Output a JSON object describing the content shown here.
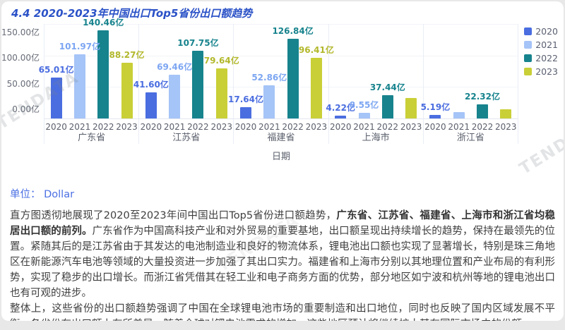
{
  "page": {
    "background": "#e8e8e8",
    "card_background": "#ffffff"
  },
  "header": {
    "title": "4.4 2020-2023年中国出口Top5省份出口额趋势",
    "title_color": "#2b52c7"
  },
  "watermark": {
    "text": "TENDATA"
  },
  "chart_data": {
    "type": "bar",
    "title": "4.4 2020-2023年中国出口Top5省份出口额趋势",
    "xlabel": "日期",
    "ylabel": "",
    "unit": "亿",
    "categories": [
      "广东省",
      "江苏省",
      "福建省",
      "上海市",
      "浙江省"
    ],
    "y_ticks": [
      "150.00亿",
      "100.00亿",
      "50.00亿",
      "0.00亿"
    ],
    "ylim": [
      0,
      150
    ],
    "grid": true,
    "legend_position": "right",
    "series": [
      {
        "name": "2020",
        "color": "#4a6de0",
        "label_color": "#4a6de0",
        "values": [
          65.01,
          41.6,
          17.64,
          4.22,
          5.19
        ],
        "labels": [
          "65.01亿",
          "41.60亿",
          "17.64亿",
          "4.22亿",
          "5.19亿"
        ]
      },
      {
        "name": "2021",
        "color": "#a5c4f7",
        "label_color": "#7da6f2",
        "values": [
          101.97,
          69.46,
          52.86,
          8.55,
          10.0
        ],
        "labels": [
          "101.97亿",
          "69.46亿",
          "52.86亿",
          "8.55亿",
          ""
        ]
      },
      {
        "name": "2022",
        "color": "#17838d",
        "label_color": "#17838d",
        "values": [
          140.46,
          107.75,
          126.84,
          37.44,
          22.32
        ],
        "labels": [
          "140.46亿",
          "107.75亿",
          "126.84亿",
          "37.44亿",
          "22.32亿"
        ]
      },
      {
        "name": "2023",
        "color": "#c9cf36",
        "label_color": "#b2b82b",
        "values": [
          88.27,
          79.64,
          96.41,
          32.0,
          15.0
        ],
        "labels": [
          "88.27亿",
          "79.64亿",
          "96.41亿",
          "",
          ""
        ]
      }
    ]
  },
  "unit_line": {
    "label": "单位：",
    "value": "Dollar"
  },
  "body": {
    "p1_intro": "直方图透彻地展现了2020至2023年间中国出口Top5省份进口额趋势，",
    "p1_bold": "广东省、江苏省、福建省、上海市和浙江省均稳居出口额的前列。",
    "p1_rest": "广东省作为中国高科技产业和对外贸易的重要基地，出口额呈现出持续增长的趋势，保持在最领先的位置。紧随其后的是江苏省由于其发达的电池制造业和良好的物流体系，锂电池出口额也实现了显著增长，特别是珠三角地区在新能源汽车电池等领域的大量投资进一步加强了其出口实力。福建省和上海市分别以其地理位置和产业布局的有利形势，实现了稳步的出口增长。而浙江省凭借其在轻工业和电子商务方面的优势，部分地区如宁波和杭州等地的锂电池出口也有可观的进步。",
    "p2": "整体上，这些省份的出口额趋势强调了中国在全球锂电池市场的重要制造和出口地位，同时也反映了国内区域发展不平衡，各省份在出口额上有所差异。随着全球对锂电池需求的增加，这些地区预计将继续扩大其在国际市场中的份额。"
  }
}
